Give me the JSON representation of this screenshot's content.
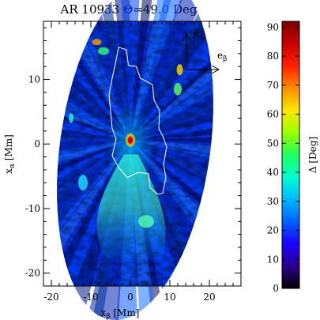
{
  "chart_data": {
    "type": "heatmap",
    "title": "AR 10933 Θ=49.0 Deg",
    "xlabel": "x",
    "xlabel_sub": "β",
    "xlabel_unit": " [Mm]",
    "ylabel": "x",
    "ylabel_sub": "α",
    "ylabel_unit": " [Mm]",
    "xlim": [
      -22,
      28
    ],
    "ylim": [
      -22,
      19
    ],
    "x_ticks": [
      -20,
      -10,
      0,
      10,
      20
    ],
    "y_ticks": [
      -20,
      -10,
      0,
      10
    ],
    "field_of_view": {
      "shape": "ellipse",
      "center": [
        1.2,
        -0.5
      ],
      "semi_axes_x_y": [
        19,
        27
      ],
      "tilt_deg": 8
    },
    "umbra_contour_polygon": [
      [
        -3,
        15
      ],
      [
        -1,
        14.6
      ],
      [
        -0.5,
        12.2
      ],
      [
        1.5,
        12.0
      ],
      [
        2.5,
        10.2
      ],
      [
        5.6,
        9.2
      ],
      [
        6,
        6.8
      ],
      [
        7.4,
        5.2
      ],
      [
        7.2,
        2.4
      ],
      [
        8.2,
        1.2
      ],
      [
        9.2,
        -0.4
      ],
      [
        8.4,
        -3.2
      ],
      [
        9.0,
        -5.2
      ],
      [
        8.2,
        -7.6
      ],
      [
        7.0,
        -7.8
      ],
      [
        5.0,
        -6.8
      ],
      [
        4.6,
        -4.6
      ],
      [
        2.0,
        -4.4
      ],
      [
        -0.8,
        -5.2
      ],
      [
        -3.0,
        -3.6
      ],
      [
        -4.6,
        -1.8
      ],
      [
        -3.6,
        0.8
      ],
      [
        -4.6,
        2.4
      ],
      [
        -5.0,
        5.0
      ],
      [
        -5.4,
        7.6
      ],
      [
        -4.6,
        10.2
      ],
      [
        -3.8,
        12.4
      ]
    ],
    "hotspot_max_xy": [
      0,
      0.6
    ],
    "colorbar": {
      "label": "Δ [Deg]",
      "range": [
        0,
        92
      ],
      "ticks": [
        0,
        10,
        20,
        30,
        40,
        50,
        60,
        70,
        80,
        90
      ],
      "colormap": [
        "#000000",
        "#2a008c",
        "#1a00ff",
        "#0060ff",
        "#00b8ff",
        "#00ffd0",
        "#20ff60",
        "#9cff00",
        "#ffe600",
        "#ff8c00",
        "#ff1f00",
        "#c80000",
        "#7a0000"
      ]
    },
    "direction_vectors": [
      {
        "name": "e",
        "sub": "α",
        "direction": "up"
      },
      {
        "name": "e",
        "sub": "β",
        "direction": "right"
      }
    ]
  }
}
